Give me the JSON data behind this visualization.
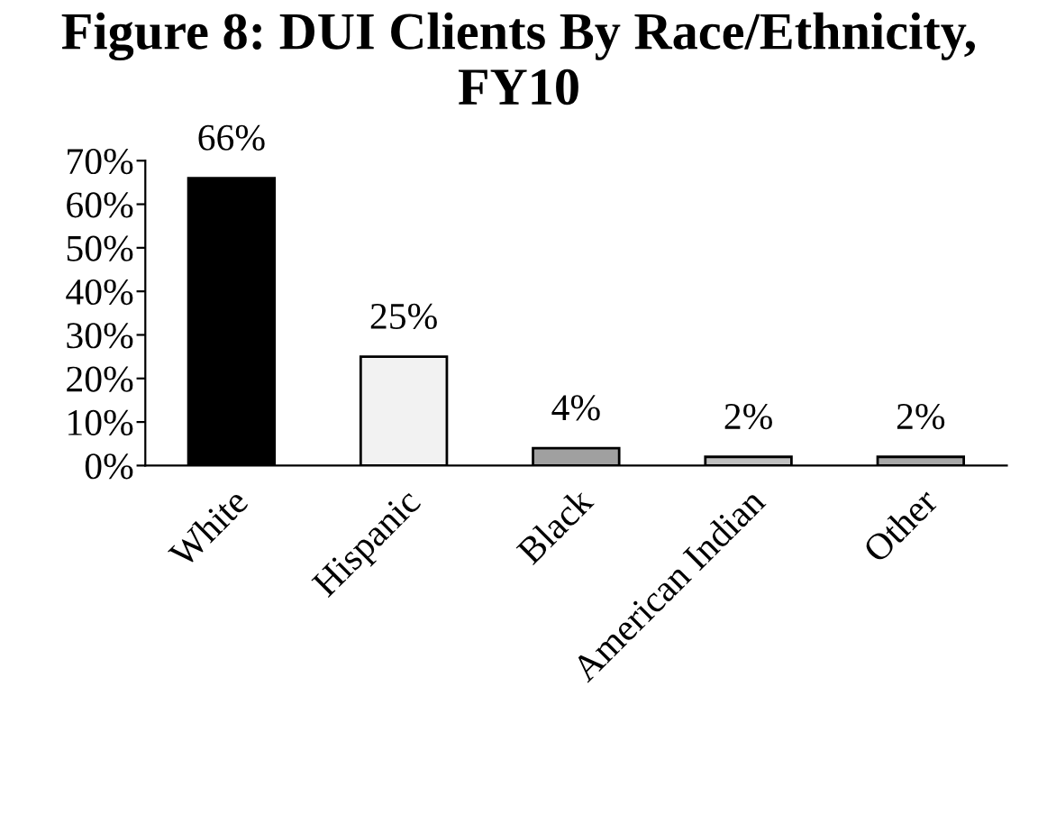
{
  "chart_data": {
    "type": "bar",
    "title": "Figure 8: DUI Clients By Race/Ethnicity, FY10",
    "categories": [
      "White",
      "Hispanic",
      "Black",
      "American Indian",
      "Other"
    ],
    "values": [
      66,
      25,
      4,
      2,
      2
    ],
    "colors": [
      "#000000",
      "#f2f2f2",
      "#a0a0a0",
      "#c0c0c0",
      "#a8a8a8"
    ],
    "value_labels": [
      "66%",
      "25%",
      "4%",
      "2%",
      "2%"
    ],
    "ylim": [
      0,
      70
    ],
    "yticks": [
      {
        "value": 0,
        "label": "0%"
      },
      {
        "value": 10,
        "label": "10%"
      },
      {
        "value": 20,
        "label": "20%"
      },
      {
        "value": 30,
        "label": "30%"
      },
      {
        "value": 40,
        "label": "40%"
      },
      {
        "value": 50,
        "label": "50%"
      },
      {
        "value": 60,
        "label": "60%"
      },
      {
        "value": 70,
        "label": "70%"
      }
    ],
    "grid": false,
    "legend": false
  }
}
